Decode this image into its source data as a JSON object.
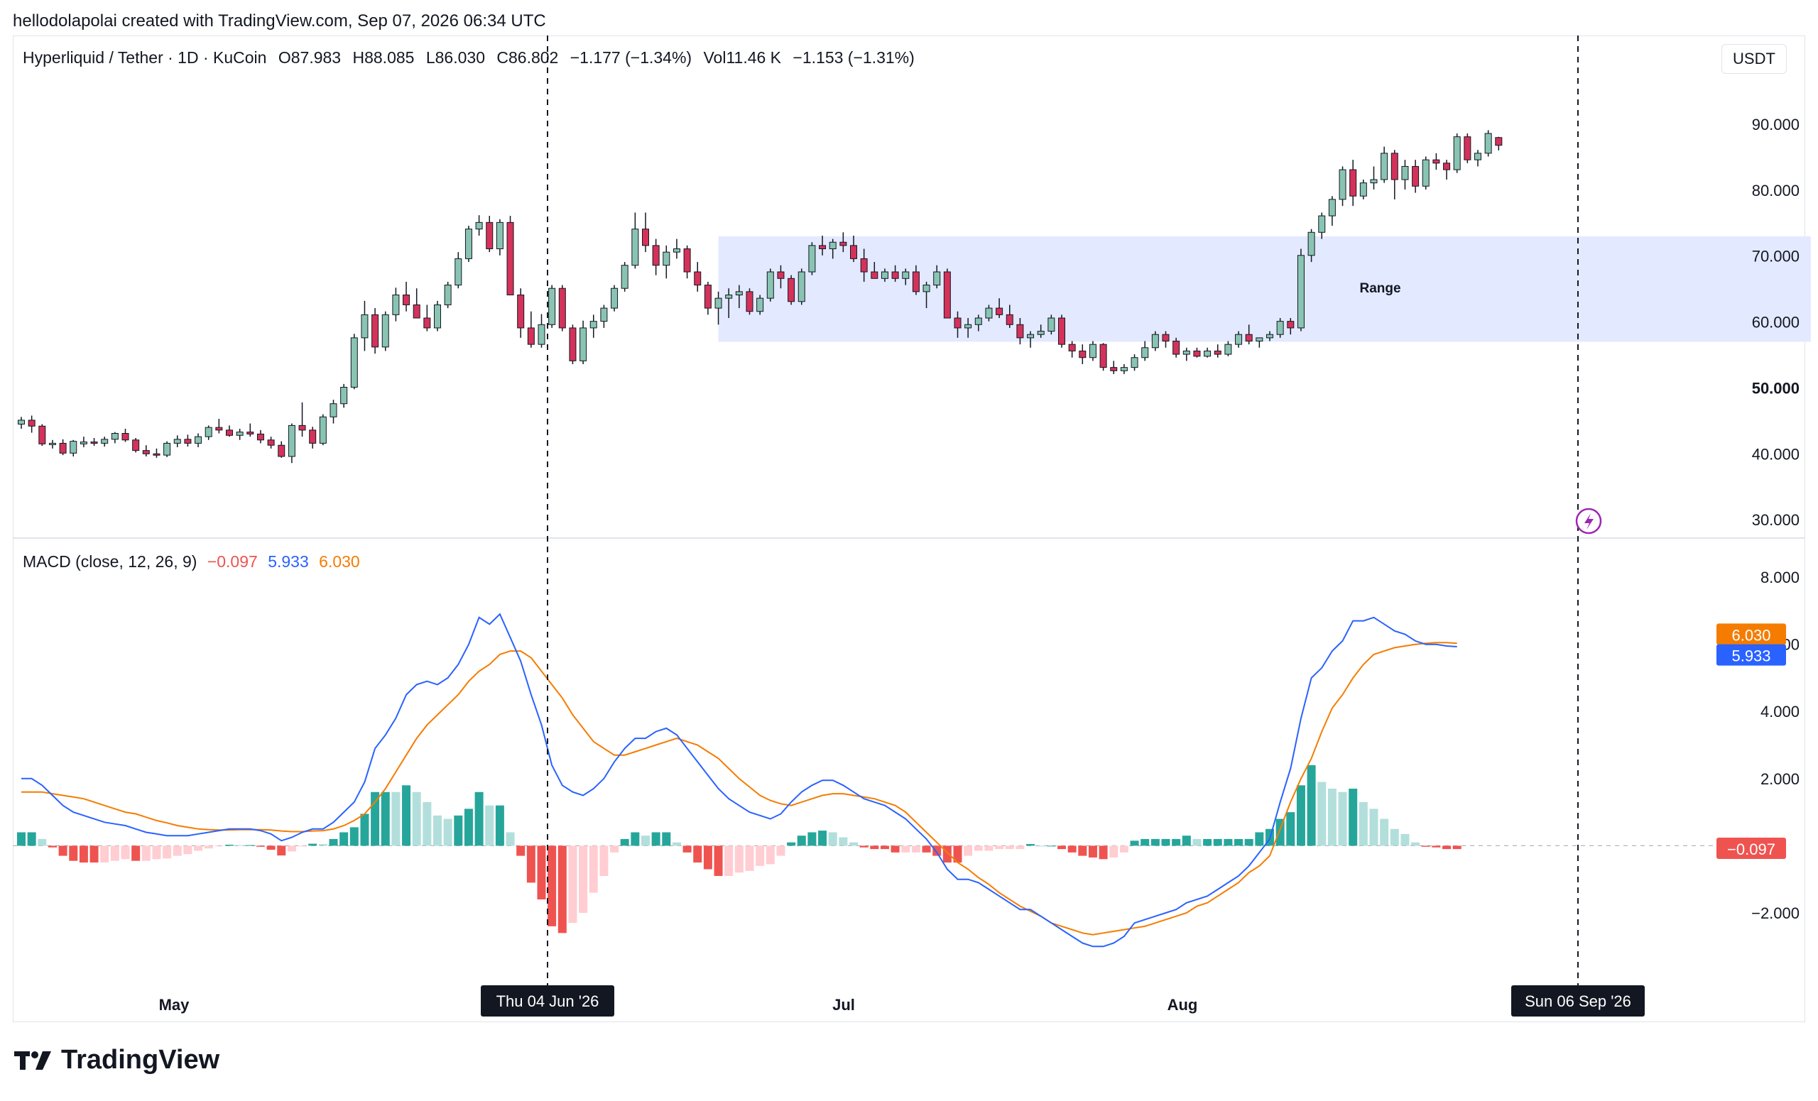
{
  "attribution": "hellodolapolai created with TradingView.com, Sep 07, 2026 06:34 UTC",
  "legend": {
    "symbol": "Hyperliquid / Tether · 1D · KuCoin",
    "open": "O87.983",
    "high": "H88.085",
    "low": "L86.030",
    "close": "C86.802",
    "change": "−1.177 (−1.34%)",
    "volume": "Vol11.46 K",
    "volume_change": "−1.153 (−1.31%)"
  },
  "currency_button": "USDT",
  "range_label": "Range",
  "macd_legend": {
    "title": "MACD (close, 12, 26, 9)",
    "hist": "−0.097",
    "macd": "5.933",
    "signal": "6.030"
  },
  "colors": {
    "up": "#89c4b3",
    "down": "#d4325a",
    "macd_line": "#2962ff",
    "signal_line": "#f57c00",
    "hist_pos_strong": "#26a69a",
    "hist_pos_weak": "#b2dfdb",
    "hist_neg_strong": "#ef5350",
    "hist_neg_weak": "#ffcdd2",
    "range_fill": "#e3e9ff"
  },
  "brand": "TradingView",
  "chart_data": [
    {
      "type": "candlestick",
      "name": "price",
      "y_ticks": [
        "30.000",
        "40.000",
        "50.000",
        "60.000",
        "70.000",
        "80.000",
        "90.000"
      ],
      "ylim": [
        27,
        97
      ],
      "x_labels": [
        "May",
        "Jul",
        "Aug"
      ],
      "crosshair_labels": [
        "Thu 04 Jun '26",
        "Sun 06 Sep '26"
      ],
      "range_box": {
        "x_start": 67,
        "x_end": 172,
        "y_low": 57,
        "y_high": 73
      },
      "ohlc": [
        [
          44.5,
          45.6,
          43.8,
          45.1
        ],
        [
          45.1,
          45.8,
          43.2,
          44.2
        ],
        [
          44.2,
          44.5,
          41.2,
          41.5
        ],
        [
          41.5,
          42.1,
          40.8,
          41.6
        ],
        [
          41.6,
          42.2,
          39.8,
          40.1
        ],
        [
          40.1,
          42.1,
          39.6,
          41.9
        ],
        [
          41.5,
          42.6,
          41.0,
          41.8
        ],
        [
          41.8,
          42.4,
          41.2,
          41.6
        ],
        [
          41.6,
          42.6,
          41.1,
          42.2
        ],
        [
          42.2,
          43.3,
          41.6,
          43.1
        ],
        [
          43.1,
          43.8,
          41.8,
          42.1
        ],
        [
          42.1,
          42.4,
          40.2,
          40.5
        ],
        [
          40.5,
          41.3,
          39.6,
          40.0
        ],
        [
          40.0,
          40.8,
          39.4,
          39.8
        ],
        [
          39.8,
          41.9,
          39.5,
          41.6
        ],
        [
          41.6,
          42.8,
          41.0,
          42.2
        ],
        [
          42.2,
          42.9,
          41.1,
          41.6
        ],
        [
          41.6,
          43.1,
          41.0,
          42.6
        ],
        [
          42.6,
          44.3,
          42.1,
          44.0
        ],
        [
          44.0,
          45.3,
          43.1,
          43.6
        ],
        [
          43.6,
          44.3,
          42.6,
          42.8
        ],
        [
          42.8,
          43.8,
          42.1,
          43.3
        ],
        [
          43.3,
          44.6,
          42.6,
          43.0
        ],
        [
          43.0,
          43.6,
          41.6,
          42.1
        ],
        [
          42.1,
          42.6,
          40.8,
          41.3
        ],
        [
          41.3,
          41.9,
          39.4,
          39.6
        ],
        [
          39.6,
          44.6,
          38.6,
          44.3
        ],
        [
          44.3,
          47.8,
          42.6,
          43.6
        ],
        [
          43.6,
          44.1,
          40.8,
          41.6
        ],
        [
          41.6,
          46.0,
          41.3,
          45.6
        ],
        [
          45.6,
          48.2,
          44.6,
          47.6
        ],
        [
          47.6,
          50.6,
          47.0,
          50.1
        ],
        [
          50.1,
          58.2,
          49.8,
          57.6
        ],
        [
          57.6,
          63.2,
          55.6,
          61.1
        ],
        [
          61.1,
          62.1,
          55.2,
          56.2
        ],
        [
          56.2,
          61.6,
          55.6,
          61.1
        ],
        [
          61.1,
          65.2,
          60.1,
          64.1
        ],
        [
          64.1,
          66.1,
          61.6,
          62.6
        ],
        [
          62.6,
          65.1,
          60.6,
          60.6
        ],
        [
          60.6,
          62.6,
          58.6,
          59.1
        ],
        [
          59.1,
          63.2,
          58.6,
          62.6
        ],
        [
          62.6,
          66.1,
          62.1,
          65.6
        ],
        [
          65.6,
          70.6,
          65.1,
          69.6
        ],
        [
          69.6,
          74.6,
          69.1,
          74.1
        ],
        [
          74.1,
          76.2,
          73.1,
          75.1
        ],
        [
          75.1,
          76.1,
          70.6,
          71.1
        ],
        [
          71.1,
          75.6,
          70.1,
          75.1
        ],
        [
          75.1,
          76.1,
          64.6,
          64.1
        ],
        [
          64.1,
          65.1,
          57.6,
          59.1
        ],
        [
          59.1,
          61.6,
          56.1,
          56.6
        ],
        [
          56.6,
          61.2,
          56.1,
          59.6
        ],
        [
          59.6,
          65.6,
          59.1,
          65.1
        ],
        [
          65.1,
          65.6,
          58.6,
          59.1
        ],
        [
          59.1,
          59.6,
          53.6,
          54.1
        ],
        [
          54.1,
          60.2,
          53.6,
          59.1
        ],
        [
          59.1,
          61.1,
          57.6,
          60.1
        ],
        [
          60.1,
          62.6,
          59.1,
          62.1
        ],
        [
          62.1,
          65.6,
          61.6,
          65.1
        ],
        [
          65.1,
          69.1,
          64.6,
          68.6
        ],
        [
          68.6,
          76.6,
          68.1,
          74.1
        ],
        [
          74.1,
          76.6,
          70.6,
          71.6
        ],
        [
          71.6,
          72.6,
          67.1,
          68.6
        ],
        [
          68.6,
          71.6,
          66.6,
          70.6
        ],
        [
          70.6,
          72.6,
          69.6,
          71.1
        ],
        [
          71.1,
          71.6,
          66.6,
          67.6
        ],
        [
          67.6,
          69.1,
          64.6,
          65.6
        ],
        [
          65.6,
          66.1,
          61.1,
          62.1
        ],
        [
          62.1,
          64.6,
          59.6,
          63.6
        ],
        [
          63.6,
          65.1,
          60.6,
          64.1
        ],
        [
          64.1,
          65.6,
          62.1,
          64.6
        ],
        [
          64.6,
          65.1,
          61.1,
          61.6
        ],
        [
          61.6,
          64.1,
          61.1,
          63.6
        ],
        [
          63.6,
          68.1,
          63.1,
          67.6
        ],
        [
          67.6,
          68.6,
          65.1,
          66.6
        ],
        [
          66.6,
          67.1,
          62.6,
          63.1
        ],
        [
          63.1,
          68.1,
          62.6,
          67.6
        ],
        [
          67.6,
          72.1,
          67.1,
          71.6
        ],
        [
          71.6,
          73.1,
          70.1,
          71.1
        ],
        [
          71.1,
          72.6,
          69.6,
          72.1
        ],
        [
          72.1,
          73.6,
          70.6,
          71.6
        ],
        [
          71.6,
          73.1,
          69.1,
          69.6
        ],
        [
          69.6,
          71.1,
          66.1,
          67.6
        ],
        [
          67.6,
          69.1,
          66.6,
          66.6
        ],
        [
          66.6,
          68.1,
          66.1,
          67.6
        ],
        [
          67.6,
          68.6,
          66.1,
          66.6
        ],
        [
          66.6,
          68.1,
          65.6,
          67.6
        ],
        [
          67.6,
          68.6,
          64.1,
          64.6
        ],
        [
          64.6,
          66.1,
          62.1,
          65.6
        ],
        [
          65.6,
          68.6,
          65.1,
          67.6
        ],
        [
          67.6,
          68.1,
          60.6,
          60.6
        ],
        [
          60.6,
          61.6,
          57.6,
          59.1
        ],
        [
          59.1,
          60.6,
          57.6,
          59.6
        ],
        [
          59.6,
          61.1,
          58.6,
          60.6
        ],
        [
          60.6,
          62.6,
          60.1,
          62.1
        ],
        [
          62.1,
          63.6,
          60.6,
          61.1
        ],
        [
          61.1,
          62.6,
          59.1,
          59.6
        ],
        [
          59.6,
          60.6,
          56.6,
          57.6
        ],
        [
          57.6,
          58.6,
          56.1,
          58.1
        ],
        [
          58.1,
          59.6,
          57.6,
          58.6
        ],
        [
          58.6,
          61.1,
          58.1,
          60.6
        ],
        [
          60.6,
          61.1,
          56.1,
          56.6
        ],
        [
          56.6,
          57.1,
          54.6,
          55.6
        ],
        [
          55.6,
          56.6,
          53.6,
          54.6
        ],
        [
          54.6,
          57.1,
          54.1,
          56.6
        ],
        [
          56.6,
          56.8,
          52.6,
          53.1
        ],
        [
          53.1,
          54.1,
          52.1,
          52.6
        ],
        [
          52.6,
          53.6,
          52.1,
          53.1
        ],
        [
          53.1,
          55.1,
          52.6,
          54.6
        ],
        [
          54.6,
          57.1,
          54.1,
          56.1
        ],
        [
          56.1,
          58.6,
          55.6,
          58.1
        ],
        [
          58.1,
          58.6,
          56.1,
          57.1
        ],
        [
          57.1,
          57.6,
          54.6,
          55.1
        ],
        [
          55.1,
          56.1,
          54.1,
          55.6
        ],
        [
          55.6,
          56.1,
          54.6,
          54.8
        ],
        [
          54.8,
          56.1,
          54.6,
          55.6
        ],
        [
          55.6,
          56.6,
          54.6,
          55.1
        ],
        [
          55.1,
          57.1,
          54.8,
          56.6
        ],
        [
          56.6,
          58.6,
          56.1,
          58.1
        ],
        [
          58.1,
          59.6,
          56.6,
          57.1
        ],
        [
          57.1,
          57.6,
          56.1,
          57.6
        ],
        [
          57.6,
          58.6,
          57.1,
          58.1
        ],
        [
          58.1,
          60.6,
          57.6,
          60.1
        ],
        [
          60.1,
          60.6,
          58.1,
          59.1
        ],
        [
          59.1,
          71.1,
          58.6,
          70.1
        ],
        [
          70.1,
          74.1,
          69.1,
          73.6
        ],
        [
          73.6,
          76.6,
          72.6,
          76.1
        ],
        [
          76.1,
          79.1,
          74.6,
          78.6
        ],
        [
          78.6,
          83.6,
          77.6,
          83.1
        ],
        [
          83.1,
          84.6,
          77.6,
          79.1
        ],
        [
          79.1,
          81.6,
          78.6,
          81.1
        ],
        [
          81.1,
          83.6,
          80.1,
          81.6
        ],
        [
          81.6,
          86.6,
          81.1,
          85.6
        ],
        [
          85.6,
          86.1,
          78.6,
          81.6
        ],
        [
          81.6,
          84.6,
          80.1,
          83.6
        ],
        [
          83.6,
          84.6,
          79.6,
          80.6
        ],
        [
          80.6,
          85.1,
          80.1,
          84.6
        ],
        [
          84.6,
          85.6,
          83.1,
          84.1
        ],
        [
          84.1,
          84.6,
          81.6,
          83.1
        ],
        [
          83.1,
          88.6,
          82.6,
          88.1
        ],
        [
          88.1,
          88.6,
          84.1,
          84.6
        ],
        [
          84.6,
          86.1,
          83.6,
          85.6
        ],
        [
          85.6,
          89.1,
          85.1,
          88.6
        ],
        [
          87.98,
          88.09,
          86.03,
          86.8
        ]
      ]
    },
    {
      "type": "macd",
      "name": "MACD (close, 12, 26, 9)",
      "y_ticks": [
        "−2.000",
        "2.000",
        "4.000",
        "6.000",
        "8.000"
      ],
      "ylim": [
        -4.2,
        8.7
      ],
      "macd": [
        2.0,
        2.0,
        1.8,
        1.5,
        1.2,
        1.0,
        0.9,
        0.8,
        0.7,
        0.65,
        0.6,
        0.5,
        0.4,
        0.35,
        0.3,
        0.3,
        0.3,
        0.35,
        0.4,
        0.45,
        0.5,
        0.5,
        0.5,
        0.45,
        0.35,
        0.15,
        0.25,
        0.4,
        0.5,
        0.5,
        0.7,
        1.0,
        1.3,
        1.9,
        2.9,
        3.3,
        3.8,
        4.5,
        4.8,
        4.9,
        4.8,
        5.0,
        5.4,
        6.0,
        6.8,
        6.6,
        6.9,
        6.2,
        5.5,
        4.5,
        3.6,
        2.4,
        1.8,
        1.6,
        1.5,
        1.7,
        2.0,
        2.5,
        2.9,
        3.2,
        3.2,
        3.4,
        3.5,
        3.3,
        2.9,
        2.5,
        2.1,
        1.7,
        1.4,
        1.2,
        1.0,
        0.9,
        0.8,
        0.95,
        1.3,
        1.6,
        1.8,
        1.95,
        1.95,
        1.8,
        1.6,
        1.4,
        1.3,
        1.2,
        1.0,
        0.8,
        0.5,
        0.2,
        -0.2,
        -0.7,
        -1.0,
        -1.0,
        -1.1,
        -1.3,
        -1.5,
        -1.7,
        -1.9,
        -1.9,
        -2.1,
        -2.3,
        -2.5,
        -2.7,
        -2.9,
        -3.0,
        -3.0,
        -2.9,
        -2.7,
        -2.3,
        -2.2,
        -2.1,
        -2.0,
        -1.9,
        -1.7,
        -1.6,
        -1.5,
        -1.3,
        -1.1,
        -0.9,
        -0.6,
        -0.2,
        0.2,
        1.3,
        2.3,
        3.8,
        5.0,
        5.3,
        5.8,
        6.1,
        6.7,
        6.7,
        6.8,
        6.6,
        6.4,
        6.3,
        6.1,
        6.0,
        6.0,
        5.95,
        5.93
      ],
      "signal": [
        1.6,
        1.6,
        1.6,
        1.55,
        1.5,
        1.45,
        1.4,
        1.3,
        1.2,
        1.1,
        1.0,
        0.95,
        0.85,
        0.75,
        0.68,
        0.6,
        0.55,
        0.5,
        0.48,
        0.47,
        0.47,
        0.48,
        0.48,
        0.48,
        0.47,
        0.44,
        0.42,
        0.42,
        0.44,
        0.45,
        0.5,
        0.6,
        0.75,
        0.95,
        1.3,
        1.7,
        2.2,
        2.7,
        3.2,
        3.6,
        3.9,
        4.2,
        4.5,
        4.9,
        5.2,
        5.4,
        5.7,
        5.8,
        5.8,
        5.6,
        5.2,
        4.8,
        4.4,
        3.9,
        3.5,
        3.1,
        2.9,
        2.7,
        2.7,
        2.8,
        2.9,
        3.0,
        3.1,
        3.2,
        3.1,
        3.0,
        2.8,
        2.6,
        2.3,
        2.0,
        1.75,
        1.5,
        1.35,
        1.25,
        1.2,
        1.3,
        1.4,
        1.5,
        1.55,
        1.55,
        1.5,
        1.45,
        1.4,
        1.3,
        1.2,
        1.0,
        0.7,
        0.4,
        0.1,
        -0.2,
        -0.5,
        -0.7,
        -0.95,
        -1.15,
        -1.4,
        -1.6,
        -1.8,
        -1.95,
        -2.1,
        -2.3,
        -2.4,
        -2.5,
        -2.6,
        -2.65,
        -2.6,
        -2.55,
        -2.5,
        -2.45,
        -2.4,
        -2.3,
        -2.2,
        -2.1,
        -2.0,
        -1.8,
        -1.7,
        -1.5,
        -1.3,
        -1.1,
        -0.8,
        -0.6,
        -0.3,
        0.5,
        1.3,
        2.0,
        2.6,
        3.4,
        4.1,
        4.5,
        5.0,
        5.4,
        5.7,
        5.8,
        5.9,
        5.95,
        6.0,
        6.03,
        6.05,
        6.05,
        6.03
      ],
      "last_label_signal": "6.030",
      "last_label_macd": "5.933",
      "last_label_hist": "−0.097"
    }
  ]
}
